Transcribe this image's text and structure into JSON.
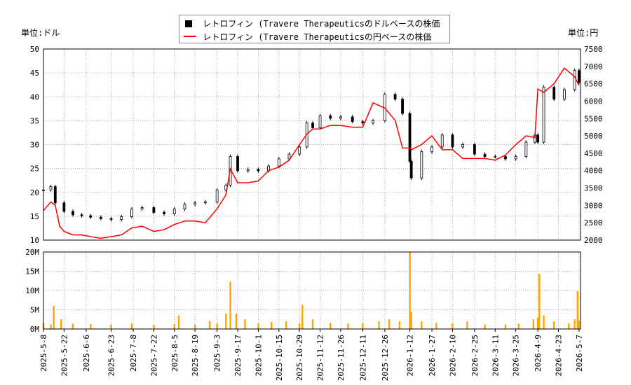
{
  "legend": {
    "items": [
      {
        "label": "レトロフィン (Travere Therapeuticsのドルベースの株価",
        "marker": "square",
        "color": "#000000"
      },
      {
        "label": "レトロフィン (Travere Therapeuticsの円ベースの株価",
        "marker": "line",
        "color": "#ff0000"
      }
    ]
  },
  "axis_units": {
    "left": "単位:ドル",
    "right": "単位:円"
  },
  "chart_data": [
    {
      "type": "candlestick+line",
      "ylim_left": [
        10,
        50
      ],
      "ylim_right": [
        2000,
        7500
      ],
      "yticks_left": [
        10,
        15,
        20,
        25,
        30,
        35,
        40,
        45,
        50
      ],
      "yticks_right": [
        2000,
        2500,
        3000,
        3500,
        4000,
        4500,
        5000,
        5500,
        6000,
        6500,
        7000,
        7500
      ],
      "grid": true,
      "legend_position": "top-center",
      "series": [
        {
          "name": "レトロフィン (Travere Therapeuticsのドルベースの株価",
          "axis": "left",
          "x": [
            "2025-05-08",
            "2025-05-13",
            "2025-05-16",
            "2025-05-22",
            "2025-05-28",
            "2025-06-03",
            "2025-06-09",
            "2025-06-16",
            "2025-06-23",
            "2025-06-30",
            "2025-07-07",
            "2025-07-14",
            "2025-07-22",
            "2025-07-29",
            "2025-08-05",
            "2025-08-12",
            "2025-08-19",
            "2025-08-26",
            "2025-09-03",
            "2025-09-09",
            "2025-09-12",
            "2025-09-17",
            "2025-09-24",
            "2025-10-01",
            "2025-10-08",
            "2025-10-15",
            "2025-10-22",
            "2025-10-29",
            "2025-11-03",
            "2025-11-07",
            "2025-11-12",
            "2025-11-19",
            "2025-11-26",
            "2025-12-04",
            "2025-12-11",
            "2025-12-18",
            "2025-12-26",
            "2026-01-02",
            "2026-01-07",
            "2026-01-12",
            "2026-01-13",
            "2026-01-20",
            "2026-01-27",
            "2026-02-03",
            "2026-02-10",
            "2026-02-17",
            "2026-02-25",
            "2026-03-04",
            "2026-03-11",
            "2026-03-18",
            "2026-03-25",
            "2026-04-01",
            "2026-04-07",
            "2026-04-09",
            "2026-04-13",
            "2026-04-20",
            "2026-04-27",
            "2026-05-04",
            "2026-05-07"
          ],
          "y": [
            20.5,
            21.2,
            17.8,
            16.0,
            15.3,
            15.1,
            14.8,
            14.5,
            14.3,
            14.9,
            16.5,
            16.8,
            15.8,
            15.5,
            16.5,
            17.5,
            17.8,
            18.0,
            20.5,
            21.5,
            27.5,
            24.5,
            24.8,
            24.5,
            25.5,
            27.0,
            28.0,
            29.5,
            34.5,
            33.5,
            36.0,
            35.5,
            35.8,
            34.8,
            34.5,
            35.0,
            40.5,
            39.5,
            36.5,
            26.5,
            23.0,
            28.5,
            29.5,
            32.0,
            29.5,
            30.0,
            28.0,
            27.5,
            27.5,
            27.0,
            27.5,
            30.5,
            32.0,
            30.5,
            42.0,
            39.5,
            41.5,
            45.5,
            43.0
          ]
        },
        {
          "name": "レトロフィン (Travere Therapeuticsの円ベースの株価",
          "axis": "right",
          "x": [
            "2025-05-08",
            "2025-05-13",
            "2025-05-16",
            "2025-05-19",
            "2025-05-22",
            "2025-05-28",
            "2025-06-03",
            "2025-06-09",
            "2025-06-16",
            "2025-06-23",
            "2025-06-30",
            "2025-07-07",
            "2025-07-14",
            "2025-07-22",
            "2025-07-29",
            "2025-08-05",
            "2025-08-12",
            "2025-08-19",
            "2025-08-26",
            "2025-09-03",
            "2025-09-09",
            "2025-09-12",
            "2025-09-17",
            "2025-09-24",
            "2025-10-01",
            "2025-10-08",
            "2025-10-15",
            "2025-10-22",
            "2025-10-29",
            "2025-11-03",
            "2025-11-07",
            "2025-11-12",
            "2025-11-19",
            "2025-11-26",
            "2025-12-04",
            "2025-12-11",
            "2025-12-18",
            "2025-12-26",
            "2026-01-02",
            "2026-01-07",
            "2026-01-12",
            "2026-01-13",
            "2026-01-20",
            "2026-01-27",
            "2026-02-03",
            "2026-02-10",
            "2026-02-17",
            "2026-02-25",
            "2026-03-04",
            "2026-03-11",
            "2026-03-18",
            "2026-03-25",
            "2026-04-01",
            "2026-04-07",
            "2026-04-09",
            "2026-04-13",
            "2026-04-20",
            "2026-04-27",
            "2026-05-04",
            "2026-05-07"
          ],
          "y": [
            2850,
            3100,
            3000,
            2400,
            2250,
            2150,
            2150,
            2100,
            2050,
            2100,
            2150,
            2350,
            2400,
            2250,
            2300,
            2450,
            2550,
            2550,
            2500,
            2900,
            3300,
            4050,
            3650,
            3650,
            3700,
            4000,
            4100,
            4300,
            4750,
            5050,
            5200,
            5200,
            5300,
            5300,
            5250,
            5250,
            5950,
            5800,
            5450,
            4650,
            4650,
            4600,
            4750,
            5000,
            4600,
            4600,
            4350,
            4350,
            4350,
            4300,
            4450,
            4750,
            5000,
            4950,
            6350,
            6250,
            6500,
            6950,
            6700,
            6450
          ]
        }
      ]
    },
    {
      "type": "bar",
      "ylim": [
        0,
        20000000
      ],
      "yticks": [
        "0M",
        "5M",
        "10M",
        "15M",
        "20M"
      ],
      "xticks": [
        "2025-5-8",
        "2025-5-22",
        "2025-6-6",
        "2025-6-23",
        "2025-7-8",
        "2025-7-22",
        "2025-8-5",
        "2025-8-19",
        "2025-9-3",
        "2025-9-17",
        "2025-10-1",
        "2025-10-15",
        "2025-10-29",
        "2025-11-12",
        "2025-11-26",
        "2025-12-11",
        "2025-12-26",
        "2026-1-12",
        "2026-1-27",
        "2026-2-10",
        "2026-2-25",
        "2026-3-11",
        "2026-3-25",
        "2026-4-9",
        "2026-4-23",
        "2026-5-7"
      ],
      "bar_color": "#ffa500",
      "series": [
        {
          "x": [
            "2025-05-08",
            "2025-05-13",
            "2025-05-15",
            "2025-05-20",
            "2025-05-28",
            "2025-06-09",
            "2025-06-23",
            "2025-07-07",
            "2025-07-22",
            "2025-08-05",
            "2025-08-08",
            "2025-08-19",
            "2025-08-29",
            "2025-09-03",
            "2025-09-09",
            "2025-09-12",
            "2025-09-16",
            "2025-09-22",
            "2025-10-01",
            "2025-10-10",
            "2025-10-20",
            "2025-10-29",
            "2025-10-31",
            "2025-11-07",
            "2025-11-19",
            "2025-12-01",
            "2025-12-11",
            "2025-12-22",
            "2025-12-29",
            "2026-01-05",
            "2026-01-12",
            "2026-01-13",
            "2026-01-20",
            "2026-01-30",
            "2026-02-10",
            "2026-02-20",
            "2026-03-04",
            "2026-03-18",
            "2026-03-27",
            "2026-04-06",
            "2026-04-09",
            "2026-04-10",
            "2026-04-13",
            "2026-04-20",
            "2026-04-30",
            "2026-05-04",
            "2026-05-06",
            "2026-05-07"
          ],
          "y": [
            1500000,
            1200000,
            6000000,
            2500000,
            1400000,
            1300000,
            1200000,
            1500000,
            1100000,
            1300000,
            3500000,
            1200000,
            2100000,
            1500000,
            4000000,
            12300000,
            4000000,
            2500000,
            1500000,
            1800000,
            2000000,
            1500000,
            6300000,
            2500000,
            1600000,
            1400000,
            1500000,
            2000000,
            2500000,
            2000000,
            20000000,
            4500000,
            2000000,
            1600000,
            1500000,
            2000000,
            1200000,
            1200000,
            1400000,
            2500000,
            3000000,
            14300000,
            3500000,
            2000000,
            1500000,
            2500000,
            9800000,
            2200000
          ]
        }
      ]
    }
  ]
}
